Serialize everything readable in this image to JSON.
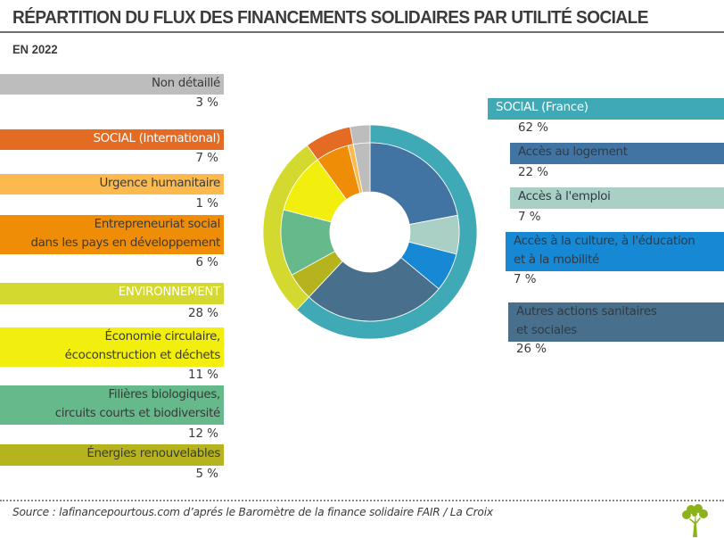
{
  "header": {
    "title": "RÉPARTITION DU FLUX DES FINANCEMENTS SOLIDAIRES PAR UTILITÉ SOCIALE",
    "subtitle": "EN 2022"
  },
  "left_legend": [
    {
      "lines": [
        "Non détaillé"
      ],
      "pct": "3 %",
      "color": "#bdbdbd",
      "text_white": false
    },
    {
      "lines": [
        "SOCIAL (International)"
      ],
      "pct": "7 %",
      "color": "#e36b24",
      "text_white": true
    },
    {
      "lines": [
        "Urgence humanitaire"
      ],
      "pct": "1 %",
      "color": "#fbb94e",
      "text_white": false
    },
    {
      "lines": [
        "Entrepreneuriat social",
        "dans les pays en développement"
      ],
      "pct": "6 %",
      "color": "#ef8d06",
      "text_white": false
    },
    {
      "lines": [
        "ENVIRONNEMENT"
      ],
      "pct": "28 %",
      "color": "#d3d92e",
      "text_white": true
    },
    {
      "lines": [
        "Économie circulaire,",
        "écoconstruction et déchets"
      ],
      "pct": "11 %",
      "color": "#f2ef0e",
      "text_white": false
    },
    {
      "lines": [
        "Filières biologiques,",
        "circuits courts et biodiversité"
      ],
      "pct": "12 %",
      "color": "#66b98a",
      "text_white": false
    },
    {
      "lines": [
        "Énergies renouvelables"
      ],
      "pct": "5 %",
      "color": "#b5b31e",
      "text_white": false
    }
  ],
  "right_legend": [
    {
      "lines": [
        "SOCIAL (France)"
      ],
      "pct": "62 %",
      "color": "#3faab5",
      "text_white": true
    },
    {
      "lines": [
        "Accès au logement"
      ],
      "pct": "22 %",
      "color": "#4174a3",
      "text_white": false
    },
    {
      "lines": [
        "Accès à l'emploi"
      ],
      "pct": "7 %",
      "color": "#aacfc5",
      "text_white": false
    },
    {
      "lines": [
        "Accès à la culture, à l'éducation",
        "et à la mobilité"
      ],
      "pct": "7 %",
      "color": "#1788d3",
      "text_white": false
    },
    {
      "lines": [
        "Autres actions sanitaires",
        "et sociales"
      ],
      "pct": "26 %",
      "color": "#48708c",
      "text_white": false
    }
  ],
  "chart_data": {
    "type": "pie",
    "variant": "nested-donut",
    "title": "RÉPARTITION DU FLUX DES FINANCEMENTS SOLIDAIRES PAR UTILITÉ SOCIALE",
    "subtitle": "EN 2022",
    "unit": "%",
    "start_angle": "12 o'clock",
    "direction": "clockwise",
    "outer_ring": [
      {
        "label": "SOCIAL (France)",
        "value": 62,
        "color": "#3faab5"
      },
      {
        "label": "ENVIRONNEMENT",
        "value": 28,
        "color": "#d3d92e"
      },
      {
        "label": "SOCIAL (International)",
        "value": 7,
        "color": "#e36b24"
      },
      {
        "label": "Non détaillé",
        "value": 3,
        "color": "#bdbdbd"
      }
    ],
    "inner_ring": [
      {
        "label": "Accès au logement",
        "parent": "SOCIAL (France)",
        "value": 22,
        "color": "#4174a3"
      },
      {
        "label": "Accès à l'emploi",
        "parent": "SOCIAL (France)",
        "value": 7,
        "color": "#aacfc5"
      },
      {
        "label": "Accès à la culture, à l'éducation et à la mobilité",
        "parent": "SOCIAL (France)",
        "value": 7,
        "color": "#1788d3"
      },
      {
        "label": "Autres actions sanitaires et sociales",
        "parent": "SOCIAL (France)",
        "value": 26,
        "color": "#48708c"
      },
      {
        "label": "Énergies renouvelables",
        "parent": "ENVIRONNEMENT",
        "value": 5,
        "color": "#b5b31e"
      },
      {
        "label": "Filières biologiques, circuits courts et biodiversité",
        "parent": "ENVIRONNEMENT",
        "value": 12,
        "color": "#66b98a"
      },
      {
        "label": "Économie circulaire, écoconstruction et déchets",
        "parent": "ENVIRONNEMENT",
        "value": 11,
        "color": "#f2ef0e"
      },
      {
        "label": "Entrepreneuriat social dans les pays en développement",
        "parent": "SOCIAL (International)",
        "value": 6,
        "color": "#ef8d06"
      },
      {
        "label": "Urgence humanitaire",
        "parent": "SOCIAL (International)",
        "value": 1,
        "color": "#fbb94e"
      },
      {
        "label": "Non détaillé",
        "parent": "Non détaillé",
        "value": 3,
        "color": "#bdbdbd"
      }
    ]
  },
  "footer": {
    "source": "Source : lafinancepourtous.com d’aprés le Baromètre de la finance solidaire FAIR / La Croix",
    "logo_icon": "tree-icon",
    "logo_color": "#8db31a"
  }
}
